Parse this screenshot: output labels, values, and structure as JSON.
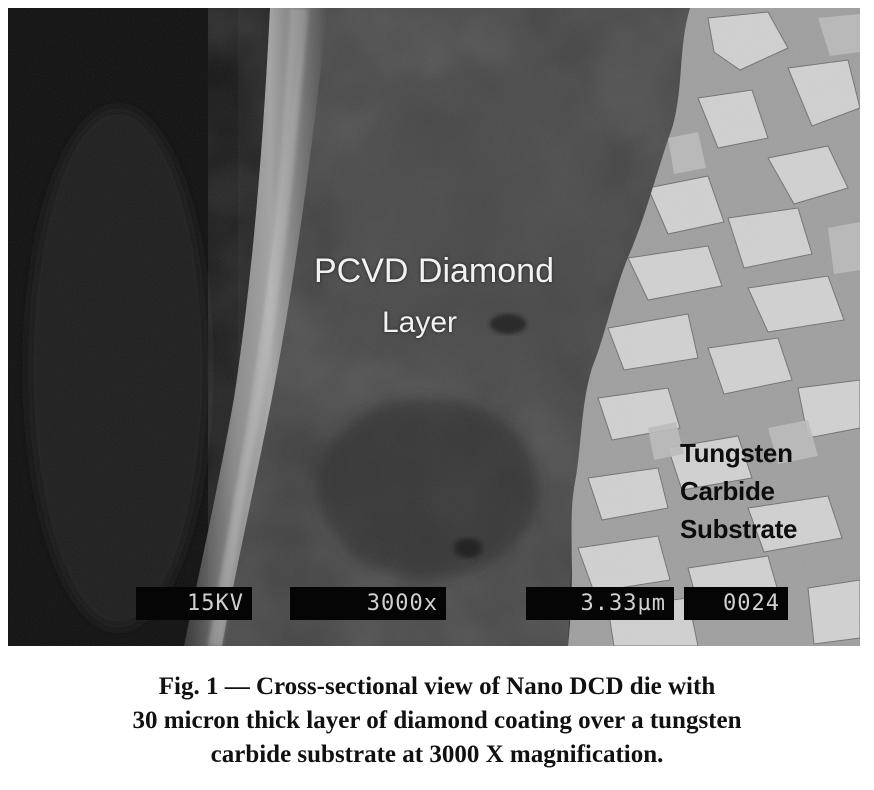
{
  "micrograph": {
    "labels": {
      "diamond_line1": "PCVD Diamond",
      "diamond_line2": "Layer",
      "substrate_lines": [
        "Tungsten",
        "Carbide",
        "Substrate"
      ]
    },
    "data_bar": {
      "voltage": "15KV",
      "magnification": "3000x",
      "scale": "3.33µm",
      "image_number": "0024"
    }
  },
  "caption": {
    "lines": [
      "Fig. 1 — Cross-sectional view of Nano DCD die with",
      "30 micron thick layer of diamond coating over a tungsten",
      "carbide substrate at 3000 X magnification."
    ]
  }
}
